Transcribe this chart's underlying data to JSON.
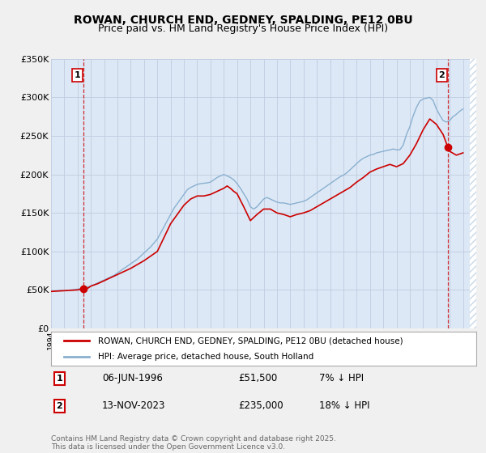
{
  "title": "ROWAN, CHURCH END, GEDNEY, SPALDING, PE12 0BU",
  "subtitle": "Price paid vs. HM Land Registry's House Price Index (HPI)",
  "title_fontsize": 10,
  "subtitle_fontsize": 9,
  "bg_color": "#f0f0f0",
  "plot_bg_color": "#dce8f5",
  "hatch_color": "#c8d8e8",
  "grid_color": "#c8d8e8",
  "xmin": 1994,
  "xmax": 2026,
  "ymin": 0,
  "ymax": 350000,
  "yticks": [
    0,
    50000,
    100000,
    150000,
    200000,
    250000,
    300000,
    350000
  ],
  "ytick_labels": [
    "£0",
    "£50K",
    "£100K",
    "£150K",
    "£200K",
    "£250K",
    "£300K",
    "£350K"
  ],
  "data_xmin": 1994.0,
  "data_xmax": 2025.5,
  "sale1_date": 1996.44,
  "sale1_price": 51500,
  "sale1_label": "1",
  "sale2_date": 2023.87,
  "sale2_price": 235000,
  "sale2_label": "2",
  "red_line_color": "#cc0000",
  "blue_line_color": "#8ab0d0",
  "legend_label_red": "ROWAN, CHURCH END, GEDNEY, SPALDING, PE12 0BU (detached house)",
  "legend_label_blue": "HPI: Average price, detached house, South Holland",
  "annotation1_date": "06-JUN-1996",
  "annotation1_price": "£51,500",
  "annotation1_hpi": "7% ↓ HPI",
  "annotation2_date": "13-NOV-2023",
  "annotation2_price": "£235,000",
  "annotation2_hpi": "18% ↓ HPI",
  "footer": "Contains HM Land Registry data © Crown copyright and database right 2025.\nThis data is licensed under the Open Government Licence v3.0.",
  "hpi_data": {
    "years": [
      1994.0,
      1994.25,
      1994.5,
      1994.75,
      1995.0,
      1995.25,
      1995.5,
      1995.75,
      1996.0,
      1996.25,
      1996.5,
      1996.75,
      1997.0,
      1997.25,
      1997.5,
      1997.75,
      1998.0,
      1998.25,
      1998.5,
      1998.75,
      1999.0,
      1999.25,
      1999.5,
      1999.75,
      2000.0,
      2000.25,
      2000.5,
      2000.75,
      2001.0,
      2001.25,
      2001.5,
      2001.75,
      2002.0,
      2002.25,
      2002.5,
      2002.75,
      2003.0,
      2003.25,
      2003.5,
      2003.75,
      2004.0,
      2004.25,
      2004.5,
      2004.75,
      2005.0,
      2005.25,
      2005.5,
      2005.75,
      2006.0,
      2006.25,
      2006.5,
      2006.75,
      2007.0,
      2007.25,
      2007.5,
      2007.75,
      2008.0,
      2008.25,
      2008.5,
      2008.75,
      2009.0,
      2009.25,
      2009.5,
      2009.75,
      2010.0,
      2010.25,
      2010.5,
      2010.75,
      2011.0,
      2011.25,
      2011.5,
      2011.75,
      2012.0,
      2012.25,
      2012.5,
      2012.75,
      2013.0,
      2013.25,
      2013.5,
      2013.75,
      2014.0,
      2014.25,
      2014.5,
      2014.75,
      2015.0,
      2015.25,
      2015.5,
      2015.75,
      2016.0,
      2016.25,
      2016.5,
      2016.75,
      2017.0,
      2017.25,
      2017.5,
      2017.75,
      2018.0,
      2018.25,
      2018.5,
      2018.75,
      2019.0,
      2019.25,
      2019.5,
      2019.75,
      2020.0,
      2020.25,
      2020.5,
      2020.75,
      2021.0,
      2021.25,
      2021.5,
      2021.75,
      2022.0,
      2022.25,
      2022.5,
      2022.75,
      2023.0,
      2023.25,
      2023.5,
      2023.75,
      2024.0,
      2024.25,
      2024.5,
      2024.75,
      2025.0
    ],
    "values": [
      48000,
      48500,
      49000,
      49500,
      49000,
      49500,
      50000,
      50500,
      51000,
      52000,
      53000,
      54000,
      55000,
      57000,
      59000,
      61000,
      63000,
      65000,
      67000,
      69000,
      72000,
      75000,
      78000,
      81000,
      84000,
      87000,
      90000,
      94000,
      98000,
      102000,
      106000,
      111000,
      116000,
      124000,
      132000,
      140000,
      148000,
      156000,
      162000,
      168000,
      174000,
      180000,
      183000,
      185000,
      187000,
      188000,
      188500,
      189000,
      190000,
      193000,
      196000,
      198000,
      200000,
      198000,
      196000,
      193000,
      188000,
      182000,
      175000,
      168000,
      158000,
      155000,
      158000,
      163000,
      168000,
      170000,
      168000,
      166000,
      164000,
      163000,
      163000,
      162000,
      161000,
      162000,
      163000,
      164000,
      165000,
      167000,
      170000,
      173000,
      176000,
      179000,
      182000,
      185000,
      188000,
      191000,
      194000,
      197000,
      199000,
      202000,
      206000,
      210000,
      214000,
      218000,
      221000,
      223000,
      225000,
      226000,
      228000,
      229000,
      230000,
      231000,
      232000,
      233000,
      232000,
      232000,
      238000,
      252000,
      262000,
      276000,
      287000,
      295000,
      298000,
      299000,
      300000,
      296000,
      285000,
      277000,
      270000,
      268000,
      270000,
      275000,
      278000,
      282000,
      285000
    ]
  },
  "property_data": {
    "years": [
      1994.0,
      1994.5,
      1995.0,
      1995.5,
      1996.0,
      1996.44,
      1996.8,
      1997.0,
      1997.5,
      1998.0,
      1998.5,
      1999.0,
      1999.5,
      2000.0,
      2000.5,
      2001.0,
      2001.5,
      2002.0,
      2002.5,
      2003.0,
      2003.5,
      2004.0,
      2004.5,
      2005.0,
      2005.5,
      2006.0,
      2006.5,
      2007.0,
      2007.25,
      2007.5,
      2007.75,
      2008.0,
      2008.5,
      2009.0,
      2009.5,
      2010.0,
      2010.5,
      2011.0,
      2011.5,
      2012.0,
      2012.5,
      2013.0,
      2013.5,
      2014.0,
      2014.5,
      2015.0,
      2015.5,
      2016.0,
      2016.5,
      2017.0,
      2017.5,
      2018.0,
      2018.5,
      2019.0,
      2019.5,
      2020.0,
      2020.5,
      2021.0,
      2021.5,
      2022.0,
      2022.5,
      2023.0,
      2023.5,
      2023.87,
      2024.0,
      2024.5,
      2025.0
    ],
    "values": [
      48000,
      48500,
      49000,
      49500,
      50000,
      51500,
      52500,
      55000,
      58000,
      62000,
      66000,
      70000,
      74000,
      78000,
      83000,
      88000,
      94000,
      100000,
      118000,
      136000,
      148000,
      160000,
      168000,
      172000,
      172000,
      174000,
      178000,
      182000,
      185000,
      182000,
      178000,
      175000,
      158000,
      140000,
      148000,
      155000,
      155000,
      150000,
      148000,
      145000,
      148000,
      150000,
      153000,
      158000,
      163000,
      168000,
      173000,
      178000,
      183000,
      190000,
      196000,
      203000,
      207000,
      210000,
      213000,
      210000,
      214000,
      225000,
      240000,
      258000,
      272000,
      265000,
      252000,
      235000,
      230000,
      225000,
      228000
    ]
  }
}
